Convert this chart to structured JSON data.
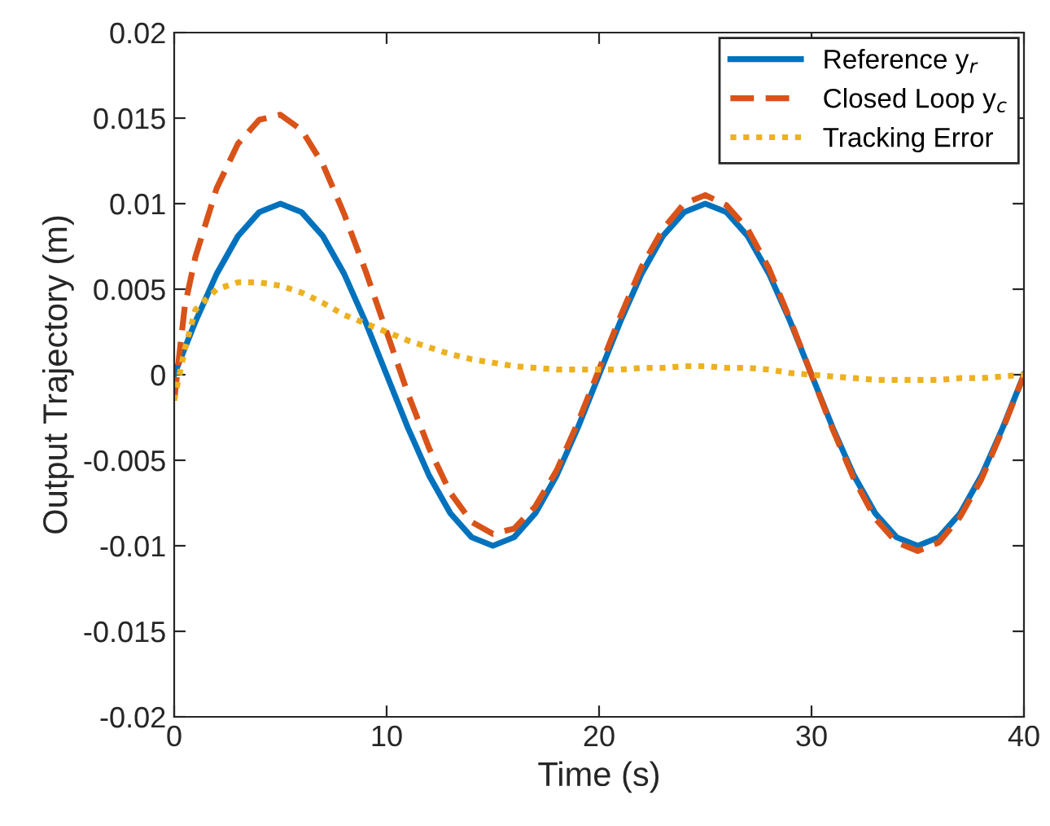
{
  "chart_data": {
    "type": "line",
    "xlabel": "Time (s)",
    "ylabel": "Output Trajectory (m)",
    "xlim": [
      0,
      40
    ],
    "xticks": [
      0,
      10,
      20,
      30,
      40
    ],
    "ylim": [
      -0.02,
      0.02
    ],
    "yticks": [
      {
        "value": -0.02,
        "label": "-0.02"
      },
      {
        "value": -0.015,
        "label": "-0.015"
      },
      {
        "value": -0.01,
        "label": "-0.01"
      },
      {
        "value": -0.005,
        "label": "-0.005"
      },
      0,
      0.005,
      0.01,
      0.015,
      0.02
    ],
    "grid": false,
    "legend": "top right",
    "marker": "none",
    "series": [
      {
        "name": "Reference y$_{r}$",
        "color": "#0072bd",
        "line_style": "solid",
        "x": [
          0,
          1,
          2,
          3,
          4,
          5,
          6,
          7,
          8,
          9,
          10,
          11,
          12,
          13,
          14,
          15,
          16,
          17,
          18,
          19,
          20,
          21,
          22,
          23,
          24,
          25,
          26,
          27,
          28,
          29,
          30,
          31,
          32,
          33,
          34,
          35,
          36,
          37,
          38,
          39,
          40
        ],
        "values": [
          0,
          0.0031,
          0.0059,
          0.0081,
          0.0095,
          0.01,
          0.0095,
          0.0081,
          0.0059,
          0.0031,
          0,
          -0.0031,
          -0.0059,
          -0.0081,
          -0.0095,
          -0.01,
          -0.0095,
          -0.0081,
          -0.0059,
          -0.0031,
          0,
          0.0031,
          0.0059,
          0.0081,
          0.0095,
          0.01,
          0.0095,
          0.0081,
          0.0059,
          0.0031,
          0,
          -0.0031,
          -0.0059,
          -0.0081,
          -0.0095,
          -0.01,
          -0.0095,
          -0.0081,
          -0.0059,
          -0.0031,
          0
        ]
      },
      {
        "name": "Closed Loop y$_{c}$",
        "color": "#d95319",
        "line_style": "dashed",
        "x": [
          0,
          0.5,
          1,
          2,
          3,
          4,
          5,
          6,
          7,
          8,
          9,
          10,
          11,
          12,
          13,
          14,
          15,
          16,
          17,
          18,
          19,
          20,
          21,
          22,
          23,
          24,
          25,
          26,
          27,
          28,
          29,
          30,
          31,
          32,
          33,
          34,
          35,
          36,
          37,
          38,
          39,
          40
        ],
        "values": [
          -0.0015,
          0.004,
          0.0069,
          0.0109,
          0.0135,
          0.0149,
          0.0152,
          0.0143,
          0.0123,
          0.0094,
          0.0061,
          0.0025,
          -0.0011,
          -0.0043,
          -0.0069,
          -0.0086,
          -0.0093,
          -0.009,
          -0.0077,
          -0.0056,
          -0.0028,
          0.0003,
          0.0034,
          0.0063,
          0.0085,
          0.01,
          0.0105,
          0.0099,
          0.0085,
          0.0062,
          0.0032,
          0,
          -0.0032,
          -0.0061,
          -0.0084,
          -0.0098,
          -0.0103,
          -0.0098,
          -0.0083,
          -0.0061,
          -0.0032,
          0
        ]
      },
      {
        "name": "Tracking Error",
        "color": "#edb120",
        "line_style": "dotted",
        "x": [
          0,
          0.5,
          1,
          2,
          3,
          4,
          5,
          6,
          7,
          8,
          9,
          10,
          11,
          12,
          13,
          14,
          15,
          16,
          17,
          18,
          19,
          20,
          21,
          22,
          23,
          24,
          25,
          26,
          27,
          28,
          29,
          30,
          31,
          32,
          33,
          34,
          35,
          36,
          37,
          38,
          39,
          40
        ],
        "values": [
          -0.0015,
          0.0015,
          0.0038,
          0.005,
          0.0054,
          0.0054,
          0.0052,
          0.0048,
          0.0042,
          0.0035,
          0.003,
          0.0025,
          0.002,
          0.0016,
          0.0012,
          0.0009,
          0.0007,
          0.0005,
          0.0004,
          0.0003,
          0.0003,
          0.0003,
          0.0003,
          0.0004,
          0.0004,
          0.0005,
          0.0005,
          0.0004,
          0.0004,
          0.0003,
          0.0001,
          0,
          -0.0001,
          -0.0002,
          -0.0003,
          -0.0003,
          -0.0003,
          -0.0003,
          -0.0002,
          -0.0002,
          -0.0001,
          0
        ]
      }
    ]
  }
}
